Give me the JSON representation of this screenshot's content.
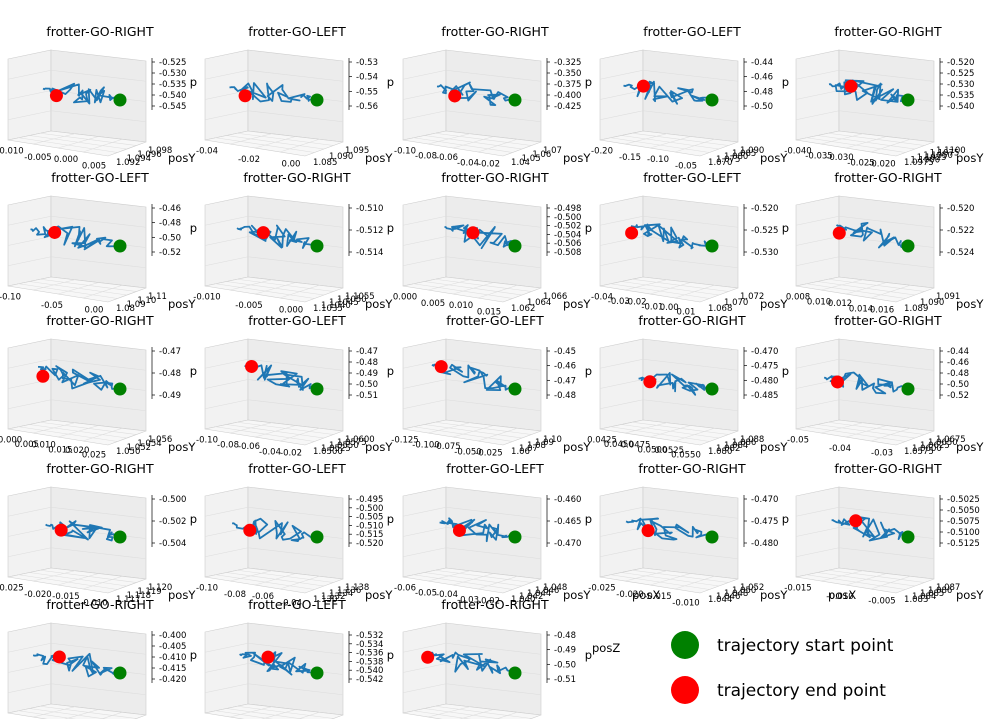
{
  "chart_data": {
    "type": "scatter",
    "description_key": "3D trajectory plots (posX, posY, posZ)",
    "panels": [
      {
        "title": "frotter-GO-RIGHT",
        "x_ticks": [
          "-0.010",
          "-0.005",
          "0.000",
          "0.005"
        ],
        "y_ticks": [
          "1.098",
          "1.096",
          "1.094",
          "1.092"
        ],
        "z_ticks": [
          "-0.525",
          "-0.530",
          "-0.535",
          "-0.540",
          "-0.545"
        ]
      },
      {
        "title": "frotter-GO-LEFT",
        "x_ticks": [
          "-0.04",
          "-0.02",
          "0.00"
        ],
        "y_ticks": [
          "1.095",
          "1.090",
          "1.085"
        ],
        "z_ticks": [
          "-0.53",
          "-0.54",
          "-0.55",
          "-0.56"
        ]
      },
      {
        "title": "frotter-GO-RIGHT",
        "x_ticks": [
          "-0.10",
          "-0.08",
          "-0.06",
          "-0.04",
          "-0.02"
        ],
        "y_ticks": [
          "1.07",
          "1.06",
          "1.05",
          "1.04"
        ],
        "z_ticks": [
          "-0.325",
          "-0.350",
          "-0.375",
          "-0.400",
          "-0.425"
        ]
      },
      {
        "title": "frotter-GO-LEFT",
        "x_ticks": [
          "-0.20",
          "-0.15",
          "-0.10",
          "-0.05"
        ],
        "y_ticks": [
          "1.090",
          "1.085",
          "1.080",
          "1.075",
          "1.070"
        ],
        "z_ticks": [
          "-0.44",
          "-0.46",
          "-0.48",
          "-0.50"
        ]
      },
      {
        "title": "frotter-GO-RIGHT",
        "x_ticks": [
          "-0.040",
          "-0.035",
          "-0.030",
          "-0.025",
          "-0.020"
        ],
        "y_ticks": [
          "1.1100",
          "1.1075",
          "1.1050",
          "1.1025",
          "1.1000",
          "1.0975"
        ],
        "z_ticks": [
          "-0.520",
          "-0.525",
          "-0.530",
          "-0.535",
          "-0.540"
        ]
      },
      {
        "title": "frotter-GO-LEFT",
        "x_ticks": [
          "-0.10",
          "-0.05",
          "0.00"
        ],
        "y_ticks": [
          "1.11",
          "1.10",
          "1.09",
          "1.08"
        ],
        "z_ticks": [
          "-0.46",
          "-0.48",
          "-0.50",
          "-0.52"
        ]
      },
      {
        "title": "frotter-GO-RIGHT",
        "x_ticks": [
          "-0.010",
          "-0.005",
          "0.000"
        ],
        "y_ticks": [
          "1.1055",
          "1.1050",
          "1.1045",
          "1.1040",
          "1.1035"
        ],
        "z_ticks": [
          "-0.510",
          "-0.512",
          "-0.514"
        ]
      },
      {
        "title": "frotter-GO-RIGHT",
        "x_ticks": [
          "0.000",
          "0.005",
          "0.010",
          "0.015"
        ],
        "y_ticks": [
          "1.066",
          "1.064",
          "1.062"
        ],
        "z_ticks": [
          "-0.498",
          "-0.500",
          "-0.502",
          "-0.504",
          "-0.506",
          "-0.508"
        ]
      },
      {
        "title": "frotter-GO-LEFT",
        "x_ticks": [
          "-0.04",
          "-0.03",
          "-0.02",
          "-0.01",
          "0.00",
          "0.01"
        ],
        "y_ticks": [
          "1.072",
          "1.070",
          "1.068"
        ],
        "z_ticks": [
          "-0.520",
          "-0.525",
          "-0.530"
        ]
      },
      {
        "title": "frotter-GO-RIGHT",
        "x_ticks": [
          "0.008",
          "0.010",
          "0.012",
          "0.014",
          "0.016"
        ],
        "y_ticks": [
          "1.091",
          "1.090",
          "1.089"
        ],
        "z_ticks": [
          "-0.520",
          "-0.522",
          "-0.524"
        ]
      },
      {
        "title": "frotter-GO-RIGHT",
        "x_ticks": [
          "0.000",
          "0.005",
          "0.010",
          "0.015",
          "0.020",
          "0.025"
        ],
        "y_ticks": [
          "1.056",
          "1.054",
          "1.052",
          "1.050"
        ],
        "z_ticks": [
          "-0.47",
          "-0.48",
          "-0.49"
        ]
      },
      {
        "title": "frotter-GO-LEFT",
        "x_ticks": [
          "-0.10",
          "-0.08",
          "-0.06",
          "-0.04",
          "-0.02"
        ],
        "y_ticks": [
          "1.0600",
          "1.0575",
          "1.0550",
          "1.0525",
          "1.0500"
        ],
        "z_ticks": [
          "-0.47",
          "-0.48",
          "-0.49",
          "-0.50",
          "-0.51"
        ]
      },
      {
        "title": "frotter-GO-LEFT",
        "x_ticks": [
          "-0.125",
          "-0.100",
          "-0.075",
          "-0.050",
          "-0.025"
        ],
        "y_ticks": [
          "1.10",
          "1.09",
          "1.08",
          "1.07",
          "1.06"
        ],
        "z_ticks": [
          "-0.45",
          "-0.46",
          "-0.47",
          "-0.48"
        ]
      },
      {
        "title": "frotter-GO-RIGHT",
        "x_ticks": [
          "0.0425",
          "0.0450",
          "0.0475",
          "0.0500",
          "0.0525",
          "0.0550"
        ],
        "y_ticks": [
          "1.088",
          "1.086",
          "1.084",
          "1.082",
          "1.080"
        ],
        "z_ticks": [
          "-0.470",
          "-0.475",
          "-0.480",
          "-0.485"
        ]
      },
      {
        "title": "frotter-GO-RIGHT",
        "x_ticks": [
          "-0.05",
          "-0.04",
          "-0.03"
        ],
        "y_ticks": [
          "1.0675",
          "1.0650",
          "1.0625",
          "1.0600",
          "1.0575"
        ],
        "z_ticks": [
          "-0.44",
          "-0.46",
          "-0.48",
          "-0.50",
          "-0.52"
        ]
      },
      {
        "title": "frotter-GO-RIGHT",
        "x_ticks": [
          "-0.025",
          "-0.020",
          "-0.015",
          "-0.010"
        ],
        "y_ticks": [
          "1.120",
          "1.119",
          "1.118",
          "1.117"
        ],
        "z_ticks": [
          "-0.500",
          "-0.502",
          "-0.504"
        ]
      },
      {
        "title": "frotter-GO-LEFT",
        "x_ticks": [
          "-0.10",
          "-0.08",
          "-0.06",
          "-0.04"
        ],
        "y_ticks": [
          "1.138",
          "1.136",
          "1.134",
          "1.132",
          "1.130"
        ],
        "z_ticks": [
          "-0.495",
          "-0.500",
          "-0.505",
          "-0.510",
          "-0.515",
          "-0.520"
        ]
      },
      {
        "title": "frotter-GO-LEFT",
        "x_ticks": [
          "-0.06",
          "-0.05",
          "-0.04",
          "-0.03",
          "-0.02"
        ],
        "y_ticks": [
          "1.048",
          "1.046",
          "1.044",
          "1.042",
          "1.040"
        ],
        "z_ticks": [
          "-0.460",
          "-0.465",
          "-0.470"
        ]
      },
      {
        "title": "frotter-GO-RIGHT",
        "x_ticks": [
          "-0.025",
          "-0.020",
          "-0.015",
          "-0.010"
        ],
        "y_ticks": [
          "1.052",
          "1.050",
          "1.048",
          "1.046",
          "1.044"
        ],
        "z_ticks": [
          "-0.470",
          "-0.475",
          "-0.480"
        ]
      },
      {
        "title": "frotter-GO-RIGHT",
        "x_ticks": [
          "-0.015",
          "-0.010",
          "-0.005"
        ],
        "y_ticks": [
          "1.087",
          "1.086",
          "1.085",
          "1.084",
          "1.083"
        ],
        "z_ticks": [
          "-0.5025",
          "-0.5050",
          "-0.5075",
          "-0.5100",
          "-0.5125"
        ]
      },
      {
        "title": "frotter-GO-RIGHT",
        "x_ticks": [
          "-0.070",
          "-0.065",
          "-0.060",
          "-0.055"
        ],
        "y_ticks": [
          "1.090",
          "1.085",
          "1.080"
        ],
        "z_ticks": [
          "-0.400",
          "-0.405",
          "-0.410",
          "-0.415",
          "-0.420"
        ]
      },
      {
        "title": "frotter-GO-LEFT",
        "x_ticks": [
          "0.0200",
          "0.0225",
          "0.0250",
          "0.0275",
          "0.0300",
          "0.0325"
        ],
        "y_ticks": [
          "1.164",
          "1.163",
          "1.162",
          "1.161"
        ],
        "z_ticks": [
          "-0.532",
          "-0.534",
          "-0.536",
          "-0.538",
          "-0.540",
          "-0.542"
        ]
      },
      {
        "title": "frotter-GO-RIGHT",
        "x_ticks": [
          "-0.02",
          "0.00",
          "0.02",
          "0.04"
        ],
        "y_ticks": [
          "1.184",
          "1.182",
          "1.180",
          "1.178"
        ],
        "z_ticks": [
          "-0.48",
          "-0.49",
          "-0.50",
          "-0.51"
        ]
      }
    ],
    "axis_labels": {
      "x": "posX",
      "y": "posY",
      "z": "posZ",
      "z_truncated": "p"
    },
    "legend": {
      "placement": "bottom-right",
      "entries": [
        {
          "label": "trajectory start point",
          "color": "#008000"
        },
        {
          "label": "trajectory end point",
          "color": "#ff0000"
        }
      ]
    },
    "colors": {
      "trajectory": "#1f77b4",
      "start": "#008000",
      "end": "#ff0000",
      "pane": "#f2f2f2",
      "grid": "#dddddd"
    }
  }
}
